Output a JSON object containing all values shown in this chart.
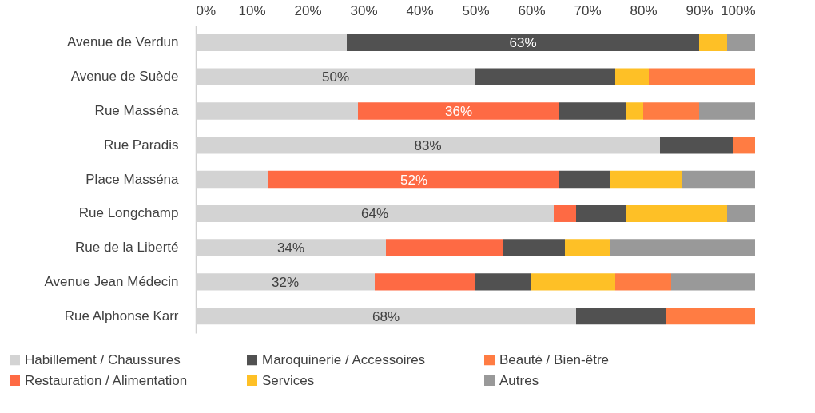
{
  "chart_data": {
    "type": "bar",
    "orientation": "horizontal",
    "stacked": true,
    "legend": "bottom",
    "grid": false,
    "categories": [
      "Avenue de Verdun",
      "Avenue de Suède",
      "Rue Masséna",
      "Rue Paradis",
      "Place Masséna",
      "Rue Longchamp",
      "Rue de la Liberté",
      "Avenue Jean Médecin",
      "Rue Alphonse Karr"
    ],
    "xlim": [
      0,
      100
    ],
    "xticks": [
      {
        "value": 0,
        "label": "0%"
      },
      {
        "value": 10,
        "label": "10%"
      },
      {
        "value": 20,
        "label": "20%"
      },
      {
        "value": 30,
        "label": "30%"
      },
      {
        "value": 40,
        "label": "40%"
      },
      {
        "value": 50,
        "label": "50%"
      },
      {
        "value": 60,
        "label": "60%"
      },
      {
        "value": 70,
        "label": "70%"
      },
      {
        "value": 80,
        "label": "80%"
      },
      {
        "value": 90,
        "label": "90%"
      },
      {
        "value": 100,
        "label": "100%"
      }
    ],
    "series": [
      {
        "name": "Habillement / Chaussures",
        "color": "#d3d3d3",
        "values": [
          27,
          50,
          29,
          83,
          13,
          64,
          34,
          32,
          68
        ],
        "value_labels": [
          null,
          "50%",
          null,
          "83%",
          null,
          "64%",
          "34%",
          "32%",
          "68%"
        ]
      },
      {
        "name": "Restauration / Alimentation",
        "color": "#fe6a44",
        "values": [
          0,
          0,
          36,
          0,
          52,
          4,
          21,
          18,
          0
        ],
        "value_labels": [
          null,
          null,
          "36%",
          null,
          "52%",
          null,
          null,
          null,
          null
        ]
      },
      {
        "name": "Maroquinerie / Accessoires",
        "color": "#515151",
        "values": [
          63,
          25,
          12,
          13,
          9,
          9,
          11,
          10,
          16
        ],
        "value_labels": [
          "63%",
          null,
          null,
          null,
          null,
          null,
          null,
          null,
          null
        ]
      },
      {
        "name": "Services",
        "color": "#fec026",
        "values": [
          5,
          6,
          3,
          0,
          13,
          18,
          8,
          15,
          0
        ]
      },
      {
        "name": "Beauté / Bien-être",
        "color": "#ff7c43",
        "values": [
          0,
          19,
          10,
          4,
          0,
          0,
          0,
          10,
          16
        ]
      },
      {
        "name": "Autres",
        "color": "#999999",
        "values": [
          5,
          0,
          10,
          0,
          13,
          5,
          26,
          15,
          0
        ]
      }
    ]
  }
}
